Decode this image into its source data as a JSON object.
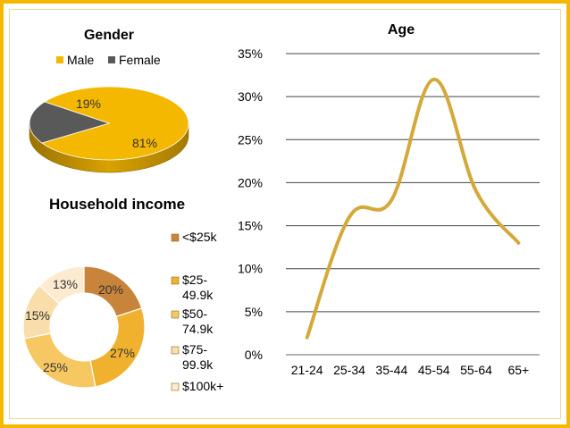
{
  "chart_data": [
    {
      "type": "pie",
      "title": "Gender",
      "legend_position": "top",
      "labels": [
        "Male",
        "Female"
      ],
      "values": [
        81,
        19
      ],
      "value_labels": [
        "81%",
        "19%"
      ],
      "colors": [
        "#F5B800",
        "#595959"
      ]
    },
    {
      "type": "pie",
      "subtype": "doughnut",
      "title": "Household income",
      "legend_position": "right",
      "labels": [
        "<$25k",
        "$25-49.9k",
        "$50-74.9k",
        "$75-99.9k",
        "$100k+"
      ],
      "legend_labels": [
        [
          "<$25k"
        ],
        [
          "$25-",
          "49.9k"
        ],
        [
          "$50-",
          "74.9k"
        ],
        [
          "$75-",
          "99.9k"
        ],
        [
          "$100k+"
        ]
      ],
      "values": [
        20,
        27,
        25,
        15,
        13
      ],
      "value_labels": [
        "20%",
        "27%",
        "25%",
        "15%",
        "13%"
      ],
      "colors": [
        "#C8843A",
        "#F0B22E",
        "#F7C862",
        "#F9DDAA",
        "#FCEBD0"
      ]
    },
    {
      "type": "line",
      "title": "Age",
      "categories": [
        "21-24",
        "25-34",
        "35-44",
        "45-54",
        "55-64",
        "65+"
      ],
      "values": [
        0.02,
        0.16,
        0.18,
        0.32,
        0.19,
        0.13
      ],
      "ylim": [
        0,
        0.35
      ],
      "yticks": [
        "0%",
        "5%",
        "10%",
        "15%",
        "20%",
        "25%",
        "30%",
        "35%"
      ],
      "grid": true,
      "smooth": true,
      "color": "#D4A93A"
    }
  ]
}
